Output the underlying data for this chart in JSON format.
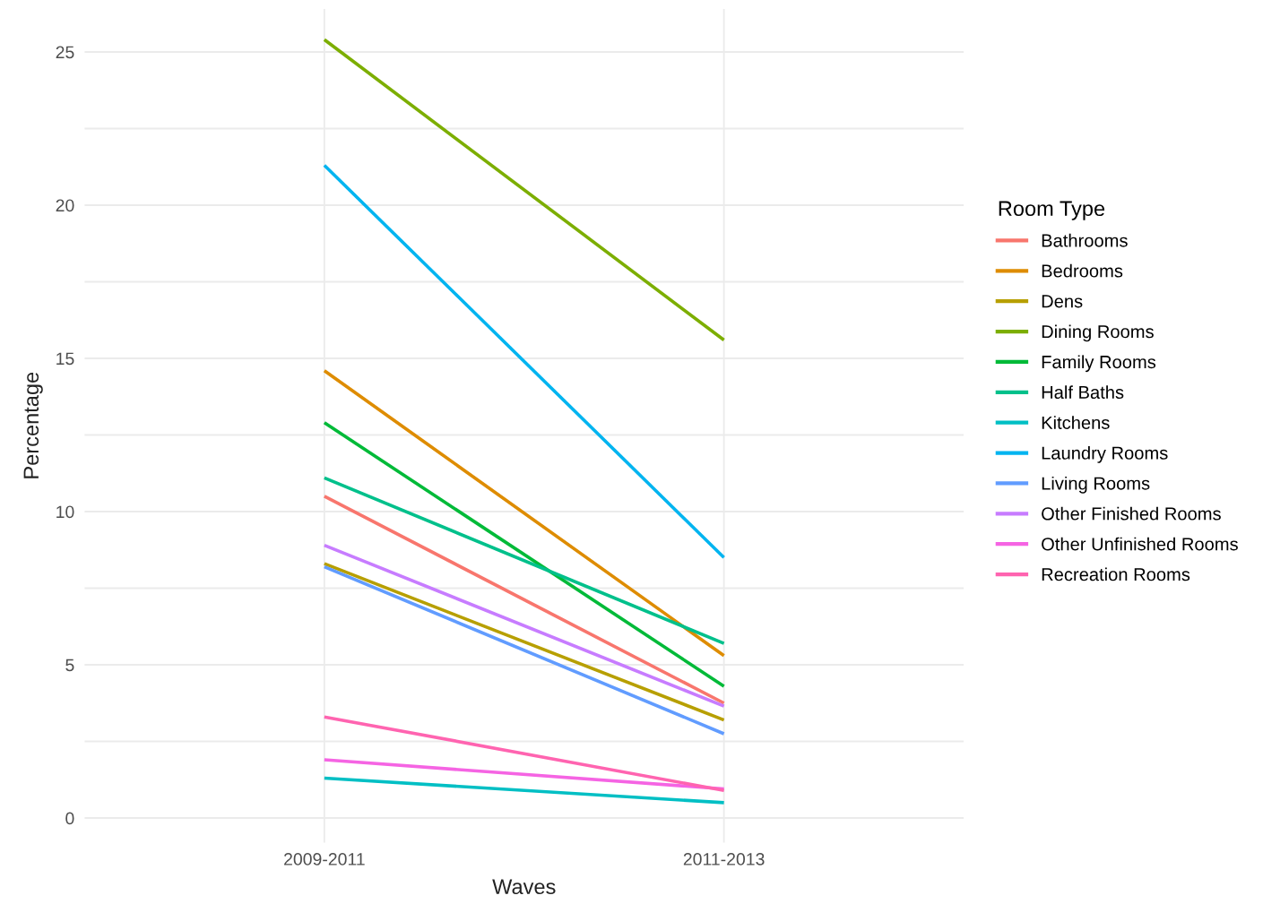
{
  "chart_data": {
    "type": "line",
    "xlabel": "Waves",
    "ylabel": "Percentage",
    "legend_title": "Room Type",
    "legend": "right",
    "categories": [
      "2009-2011",
      "2011-2013"
    ],
    "series": [
      {
        "name": "Bathrooms",
        "color": "#F8766D",
        "values": [
          10.5,
          3.75
        ]
      },
      {
        "name": "Bedrooms",
        "color": "#DE8C00",
        "values": [
          14.6,
          5.3
        ]
      },
      {
        "name": "Dens",
        "color": "#B79F00",
        "values": [
          8.3,
          3.2
        ]
      },
      {
        "name": "Dining Rooms",
        "color": "#7CAE00",
        "values": [
          25.4,
          15.6
        ]
      },
      {
        "name": "Family Rooms",
        "color": "#00BA38",
        "values": [
          12.9,
          4.3
        ]
      },
      {
        "name": "Half Baths",
        "color": "#00C08B",
        "values": [
          11.1,
          5.7
        ]
      },
      {
        "name": "Kitchens",
        "color": "#00BFC4",
        "values": [
          1.3,
          0.5
        ]
      },
      {
        "name": "Laundry Rooms",
        "color": "#00B4F0",
        "values": [
          21.3,
          8.5
        ]
      },
      {
        "name": "Living Rooms",
        "color": "#619CFF",
        "values": [
          8.2,
          2.75
        ]
      },
      {
        "name": "Other Finished Rooms",
        "color": "#C77CFF",
        "values": [
          8.9,
          3.65
        ]
      },
      {
        "name": "Other Unfinished Rooms",
        "color": "#F564E3",
        "values": [
          1.9,
          0.95
        ]
      },
      {
        "name": "Recreation Rooms",
        "color": "#FF64B0",
        "values": [
          3.3,
          0.9
        ]
      }
    ],
    "ylim": [
      -0.8,
      26.4
    ],
    "yticks": [
      0,
      {
        "value": 2.5,
        "label": null
      },
      5,
      {
        "value": 7.5,
        "label": null
      },
      10,
      {
        "value": 12.5,
        "label": null
      },
      15,
      {
        "value": 17.5,
        "label": null
      },
      20,
      {
        "value": 22.5,
        "label": null
      },
      25
    ],
    "grid": true,
    "line_style": "solid",
    "marker": "none"
  }
}
